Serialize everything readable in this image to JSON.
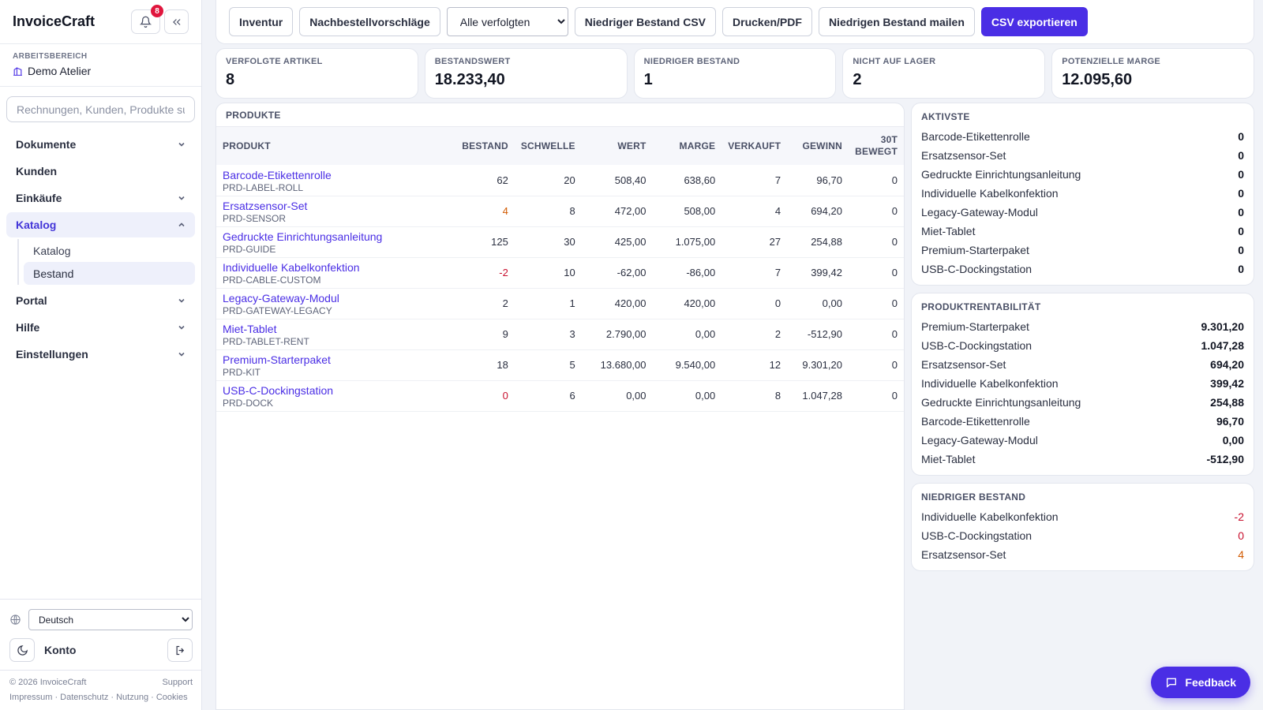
{
  "app": {
    "brand": "InvoiceCraft",
    "notifications": "8"
  },
  "workspace": {
    "label": "ARBEITSBEREICH",
    "name": "Demo Atelier"
  },
  "search": {
    "placeholder": "Rechnungen, Kunden, Produkte su"
  },
  "nav": {
    "dokumente": "Dokumente",
    "kunden": "Kunden",
    "einkaeufe": "Einkäufe",
    "katalog": "Katalog",
    "katalog_sub": [
      "Katalog",
      "Bestand"
    ],
    "portal": "Portal",
    "hilfe": "Hilfe",
    "einstellungen": "Einstellungen"
  },
  "bottom": {
    "language": "Deutsch",
    "account": "Konto",
    "copyright": "© 2026 InvoiceCraft",
    "support": "Support",
    "links": "Impressum · Datenschutz · Nutzung · Cookies"
  },
  "toolbar": {
    "inventur": "Inventur",
    "reorder": "Nachbestellvorschläge",
    "filter": "Alle verfolgten",
    "low_csv": "Niedriger Bestand CSV",
    "print": "Drucken/PDF",
    "mail_low": "Niedrigen Bestand mailen",
    "export_csv": "CSV exportieren"
  },
  "kpis": [
    {
      "label": "VERFOLGTE ARTIKEL",
      "value": "8"
    },
    {
      "label": "BESTANDSWERT",
      "value": "18.233,40"
    },
    {
      "label": "NIEDRIGER BESTAND",
      "value": "1"
    },
    {
      "label": "NICHT AUF LAGER",
      "value": "2"
    },
    {
      "label": "POTENZIELLE MARGE",
      "value": "12.095,60"
    }
  ],
  "products": {
    "title": "PRODUKTE",
    "columns": {
      "product": "PRODUKT",
      "stock": "BESTAND",
      "threshold": "SCHWELLE",
      "value": "WERT",
      "margin": "MARGE",
      "sold": "VERKAUFT",
      "profit": "GEWINN",
      "moved": "30T BEWEGT"
    },
    "rows": [
      {
        "name": "Barcode-Etikettenrolle",
        "sku": "PRD-LABEL-ROLL",
        "stock": "62",
        "threshold": "20",
        "value": "508,40",
        "margin": "638,60",
        "sold": "7",
        "profit": "96,70",
        "moved": "0"
      },
      {
        "name": "Ersatzsensor-Set",
        "sku": "PRD-SENSOR",
        "stock": "4",
        "threshold": "8",
        "value": "472,00",
        "margin": "508,00",
        "sold": "4",
        "profit": "694,20",
        "moved": "0"
      },
      {
        "name": "Gedruckte Einrichtungsanleitung",
        "sku": "PRD-GUIDE",
        "stock": "125",
        "threshold": "30",
        "value": "425,00",
        "margin": "1.075,00",
        "sold": "27",
        "profit": "254,88",
        "moved": "0"
      },
      {
        "name": "Individuelle Kabelkonfektion",
        "sku": "PRD-CABLE-CUSTOM",
        "stock": "-2",
        "threshold": "10",
        "value": "-62,00",
        "margin": "-86,00",
        "sold": "7",
        "profit": "399,42",
        "moved": "0"
      },
      {
        "name": "Legacy-Gateway-Modul",
        "sku": "PRD-GATEWAY-LEGACY",
        "stock": "2",
        "threshold": "1",
        "value": "420,00",
        "margin": "420,00",
        "sold": "0",
        "profit": "0,00",
        "moved": "0"
      },
      {
        "name": "Miet-Tablet",
        "sku": "PRD-TABLET-RENT",
        "stock": "9",
        "threshold": "3",
        "value": "2.790,00",
        "margin": "0,00",
        "sold": "2",
        "profit": "-512,90",
        "moved": "0"
      },
      {
        "name": "Premium-Starterpaket",
        "sku": "PRD-KIT",
        "stock": "18",
        "threshold": "5",
        "value": "13.680,00",
        "margin": "9.540,00",
        "sold": "12",
        "profit": "9.301,20",
        "moved": "0"
      },
      {
        "name": "USB-C-Dockingstation",
        "sku": "PRD-DOCK",
        "stock": "0",
        "threshold": "6",
        "value": "0,00",
        "margin": "0,00",
        "sold": "8",
        "profit": "1.047,28",
        "moved": "0"
      }
    ]
  },
  "active": {
    "title": "AKTIVSTE",
    "rows": [
      {
        "name": "Barcode-Etikettenrolle",
        "value": "0"
      },
      {
        "name": "Ersatzsensor-Set",
        "value": "0"
      },
      {
        "name": "Gedruckte Einrichtungsanleitung",
        "value": "0"
      },
      {
        "name": "Individuelle Kabelkonfektion",
        "value": "0"
      },
      {
        "name": "Legacy-Gateway-Modul",
        "value": "0"
      },
      {
        "name": "Miet-Tablet",
        "value": "0"
      },
      {
        "name": "Premium-Starterpaket",
        "value": "0"
      },
      {
        "name": "USB-C-Dockingstation",
        "value": "0"
      }
    ]
  },
  "profitability": {
    "title": "PRODUKTRENTABILITÄT",
    "rows": [
      {
        "name": "Premium-Starterpaket",
        "value": "9.301,20"
      },
      {
        "name": "USB-C-Dockingstation",
        "value": "1.047,28"
      },
      {
        "name": "Ersatzsensor-Set",
        "value": "694,20"
      },
      {
        "name": "Individuelle Kabelkonfektion",
        "value": "399,42"
      },
      {
        "name": "Gedruckte Einrichtungsanleitung",
        "value": "254,88"
      },
      {
        "name": "Barcode-Etikettenrolle",
        "value": "96,70"
      },
      {
        "name": "Legacy-Gateway-Modul",
        "value": "0,00"
      },
      {
        "name": "Miet-Tablet",
        "value": "-512,90"
      }
    ]
  },
  "low_stock": {
    "title": "NIEDRIGER BESTAND",
    "rows": [
      {
        "name": "Individuelle Kabelkonfektion",
        "value": "-2"
      },
      {
        "name": "USB-C-Dockingstation",
        "value": "0"
      },
      {
        "name": "Ersatzsensor-Set",
        "value": "4"
      }
    ]
  },
  "feedback": "Feedback",
  "colors": {
    "accent": "#4a2ee5",
    "danger": "#c8102e",
    "warning": "#d25a00"
  }
}
